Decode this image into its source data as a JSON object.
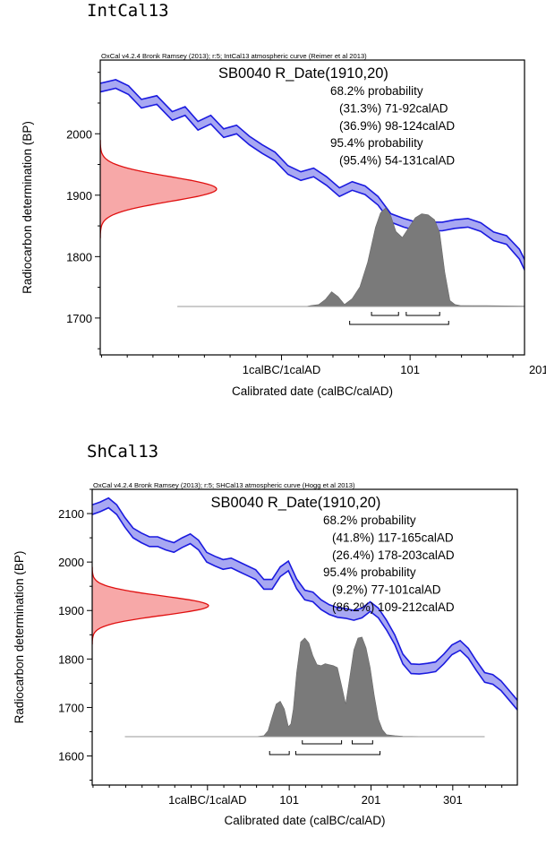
{
  "chart_data": [
    {
      "type": "area",
      "section_title": "IntCal13",
      "header": "OxCal v4.2.4 Bronk Ramsey (2013); r:5; IntCal13 atmospheric curve (Reimer et al 2013)",
      "title": "SB0040 R_Date(1910,20)",
      "xlabel": "Calibrated date (calBC/calAD)",
      "ylabel": "Radiocarbon determination (BP)",
      "xlim": [
        -140,
        190
      ],
      "ylim": [
        1640,
        2120
      ],
      "x_ticks": [
        {
          "v": 1,
          "label": "1calBC/1calAD"
        },
        {
          "v": 101,
          "label": "101"
        },
        {
          "v": 201,
          "label": "201"
        }
      ],
      "x_minor_step": 20,
      "y_ticks": [
        1700,
        1800,
        1900,
        2000
      ],
      "y_minor_step": 50,
      "probability_text": [
        "68.2% probability",
        "(31.3%) 71-92calAD",
        "(36.9%) 98-124calAD",
        "95.4% probability",
        "(95.4%) 54-131calAD"
      ],
      "ranges_68": [
        [
          71,
          92
        ],
        [
          98,
          124
        ]
      ],
      "ranges_95": [
        [
          54,
          131
        ]
      ],
      "measurement": {
        "mean": 1910,
        "sd": 20
      },
      "calibration_curve": {
        "x": [
          -140,
          -128,
          -118,
          -108,
          -96,
          -84,
          -74,
          -64,
          -54,
          -44,
          -34,
          -24,
          -14,
          -4,
          6,
          16,
          26,
          36,
          46,
          56,
          66,
          76,
          86,
          96,
          106,
          116,
          126,
          136,
          146,
          156,
          166,
          176,
          186,
          196,
          206,
          216,
          226,
          236,
          246,
          256,
          266,
          276,
          286,
          296,
          306,
          316,
          326,
          336,
          346,
          356,
          366,
          376
        ],
        "upper": [
          2082,
          2088,
          2078,
          2056,
          2062,
          2036,
          2044,
          2020,
          2030,
          2008,
          2014,
          1996,
          1982,
          1970,
          1948,
          1938,
          1944,
          1930,
          1912,
          1922,
          1915,
          1898,
          1870,
          1862,
          1856,
          1856,
          1856,
          1860,
          1862,
          1855,
          1840,
          1834,
          1812,
          1770,
          1740,
          1750,
          1760,
          1768,
          1770,
          1765,
          1760,
          1755,
          1750,
          1745,
          1740,
          1735,
          1730,
          1725,
          1720,
          1715,
          1710,
          1705
        ],
        "lower": [
          2068,
          2074,
          2064,
          2042,
          2048,
          2022,
          2030,
          2006,
          2016,
          1994,
          2000,
          1982,
          1968,
          1956,
          1934,
          1924,
          1930,
          1916,
          1898,
          1908,
          1901,
          1884,
          1856,
          1848,
          1842,
          1842,
          1842,
          1846,
          1848,
          1841,
          1826,
          1820,
          1796,
          1752,
          1718,
          1732,
          1742,
          1750,
          1752,
          1747,
          1742,
          1737,
          1732,
          1727,
          1722,
          1717,
          1712,
          1707,
          1702,
          1697,
          1692,
          1687
        ]
      },
      "posterior": {
        "x": [
          -80,
          20,
          24,
          30,
          35,
          40,
          45,
          50,
          56,
          62,
          68,
          74,
          78,
          82,
          86,
          90,
          95,
          100,
          105,
          110,
          115,
          120,
          124,
          128,
          132,
          136,
          140,
          160,
          200,
          240
        ],
        "y": [
          0,
          0,
          0.01,
          0.02,
          0.07,
          0.15,
          0.1,
          0.02,
          0.08,
          0.2,
          0.45,
          0.8,
          0.95,
          1.0,
          0.92,
          0.76,
          0.7,
          0.8,
          0.9,
          0.94,
          0.93,
          0.88,
          0.75,
          0.35,
          0.06,
          0.02,
          0.01,
          0.008,
          0.003,
          0
        ]
      }
    },
    {
      "type": "area",
      "section_title": "ShCal13",
      "header": "OxCal v4.2.4 Bronk Ramsey (2013); r:5; SHCal13 atmospheric curve (Hogg et al 2013)",
      "title": "SB0040 R_Date(1910,20)",
      "xlabel": "Calibrated date (calBC/calAD)",
      "ylabel": "Radiocarbon determination (BP)",
      "xlim": [
        -140,
        380
      ],
      "ylim": [
        1540,
        2150
      ],
      "x_ticks": [
        {
          "v": 1,
          "label": "1calBC/1calAD"
        },
        {
          "v": 101,
          "label": "101"
        },
        {
          "v": 201,
          "label": "201"
        },
        {
          "v": 301,
          "label": "301"
        }
      ],
      "x_minor_step": 20,
      "y_ticks": [
        1600,
        1700,
        1800,
        1900,
        2000,
        2100
      ],
      "y_minor_step": 50,
      "probability_text": [
        "68.2% probability",
        "(41.8%) 117-165calAD",
        "(26.4%) 178-203calAD",
        "95.4% probability",
        "(9.2%) 77-101calAD",
        "(86.2%) 109-212calAD"
      ],
      "ranges_68": [
        [
          117,
          165
        ],
        [
          178,
          203
        ]
      ],
      "ranges_95": [
        [
          77,
          101
        ],
        [
          109,
          212
        ]
      ],
      "measurement": {
        "mean": 1910,
        "sd": 20
      },
      "calibration_curve": {
        "x": [
          -140,
          -130,
          -120,
          -110,
          -100,
          -90,
          -80,
          -70,
          -60,
          -50,
          -40,
          -30,
          -20,
          -10,
          0,
          10,
          20,
          30,
          40,
          50,
          60,
          70,
          80,
          90,
          100,
          110,
          120,
          130,
          140,
          150,
          160,
          170,
          180,
          190,
          200,
          210,
          220,
          230,
          240,
          250,
          260,
          270,
          280,
          290,
          300,
          310,
          320,
          330,
          340,
          350,
          360,
          370,
          380
        ],
        "upper": [
          2118,
          2124,
          2132,
          2118,
          2092,
          2070,
          2060,
          2052,
          2052,
          2045,
          2040,
          2050,
          2058,
          2045,
          2020,
          2012,
          2005,
          2008,
          2000,
          1992,
          1984,
          1964,
          1964,
          1990,
          2002,
          1965,
          1942,
          1938,
          1922,
          1912,
          1906,
          1904,
          1900,
          1905,
          1918,
          1905,
          1880,
          1850,
          1810,
          1790,
          1789,
          1791,
          1794,
          1810,
          1829,
          1838,
          1822,
          1796,
          1772,
          1768,
          1755,
          1735,
          1715
        ],
        "lower": [
          2098,
          2104,
          2112,
          2098,
          2072,
          2050,
          2040,
          2032,
          2032,
          2025,
          2020,
          2030,
          2038,
          2025,
          2000,
          1992,
          1985,
          1988,
          1980,
          1972,
          1964,
          1944,
          1944,
          1970,
          1982,
          1945,
          1922,
          1918,
          1902,
          1892,
          1886,
          1884,
          1880,
          1885,
          1898,
          1885,
          1860,
          1830,
          1790,
          1770,
          1769,
          1771,
          1774,
          1790,
          1809,
          1818,
          1802,
          1776,
          1752,
          1748,
          1735,
          1715,
          1695
        ]
      },
      "posterior": {
        "x": [
          -100,
          60,
          70,
          75,
          80,
          85,
          90,
          95,
          100,
          103,
          106,
          110,
          115,
          120,
          125,
          130,
          135,
          140,
          145,
          150,
          155,
          160,
          165,
          170,
          175,
          180,
          185,
          190,
          195,
          200,
          205,
          210,
          215,
          220,
          230,
          240,
          260,
          300,
          340
        ],
        "y": [
          0,
          0,
          0.01,
          0.06,
          0.2,
          0.33,
          0.36,
          0.28,
          0.1,
          0.13,
          0.28,
          0.65,
          0.96,
          1.0,
          0.95,
          0.82,
          0.73,
          0.72,
          0.74,
          0.73,
          0.72,
          0.7,
          0.52,
          0.33,
          0.6,
          0.88,
          1.0,
          1.01,
          0.9,
          0.7,
          0.42,
          0.18,
          0.07,
          0.02,
          0.01,
          0.005,
          0.002,
          0.001,
          0
        ]
      }
    }
  ]
}
